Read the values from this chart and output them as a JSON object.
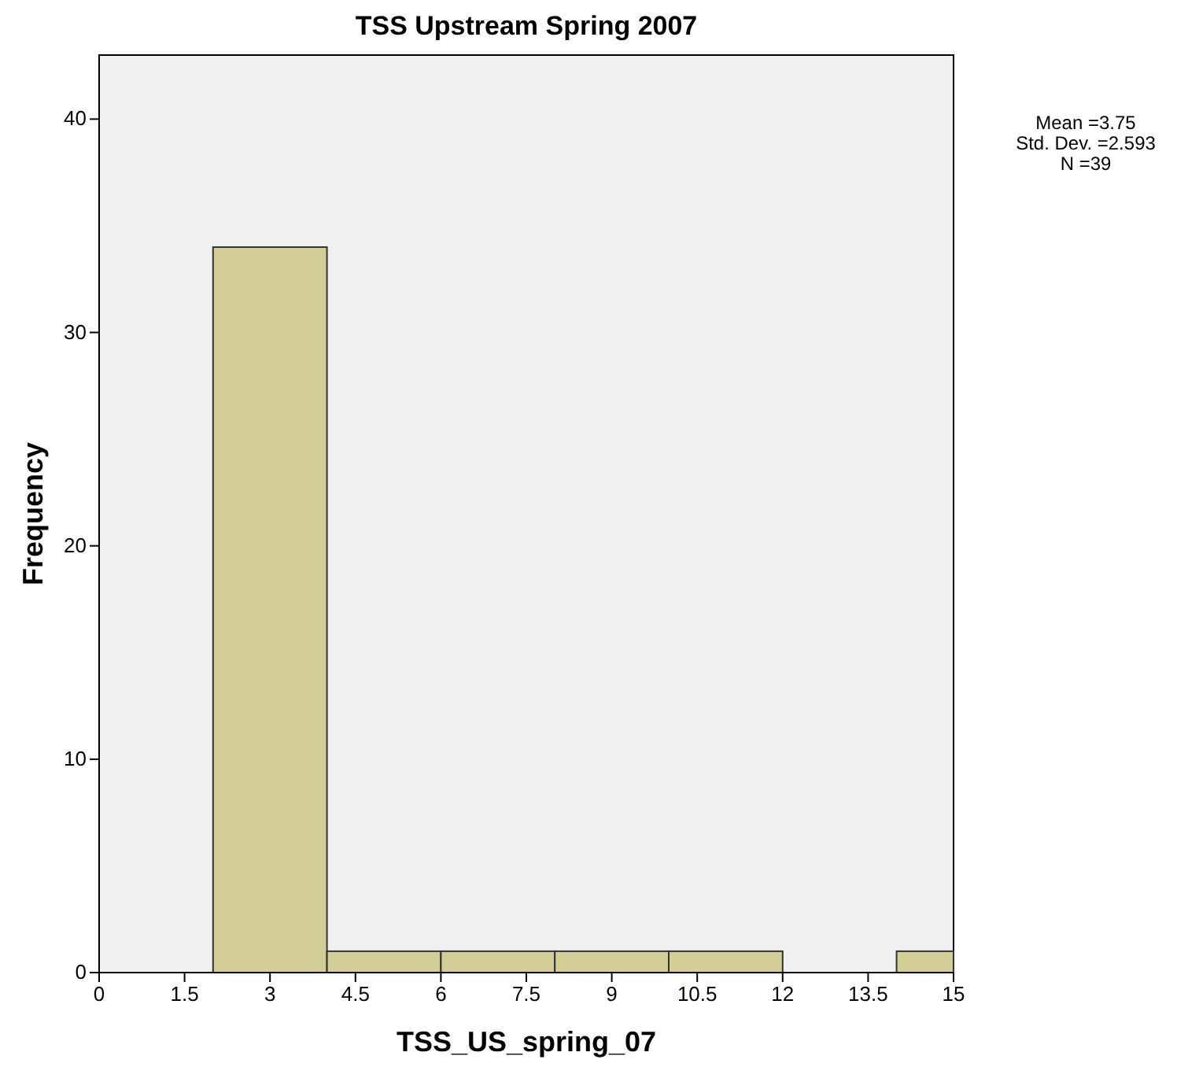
{
  "chart_data": {
    "type": "histogram",
    "title": "TSS Upstream Spring 2007",
    "xlabel": "TSS_US_spring_07",
    "ylabel": "Frequency",
    "bins": [
      2,
      4,
      6,
      8,
      10,
      12,
      14,
      15
    ],
    "values": [
      34,
      1,
      1,
      1,
      1,
      0,
      1
    ],
    "color": "#d3ce97",
    "xlim": [
      0,
      15
    ],
    "xticks": [
      0,
      1.5,
      3,
      4.5,
      6,
      7.5,
      9,
      10.5,
      12,
      13.5,
      15
    ],
    "ylim": [
      0,
      43
    ],
    "yticks": [
      0,
      10,
      20,
      30,
      40
    ],
    "grid": false,
    "annotations": [
      "Mean =3.75",
      "Std. Dev. =2.593",
      "N =39"
    ]
  }
}
